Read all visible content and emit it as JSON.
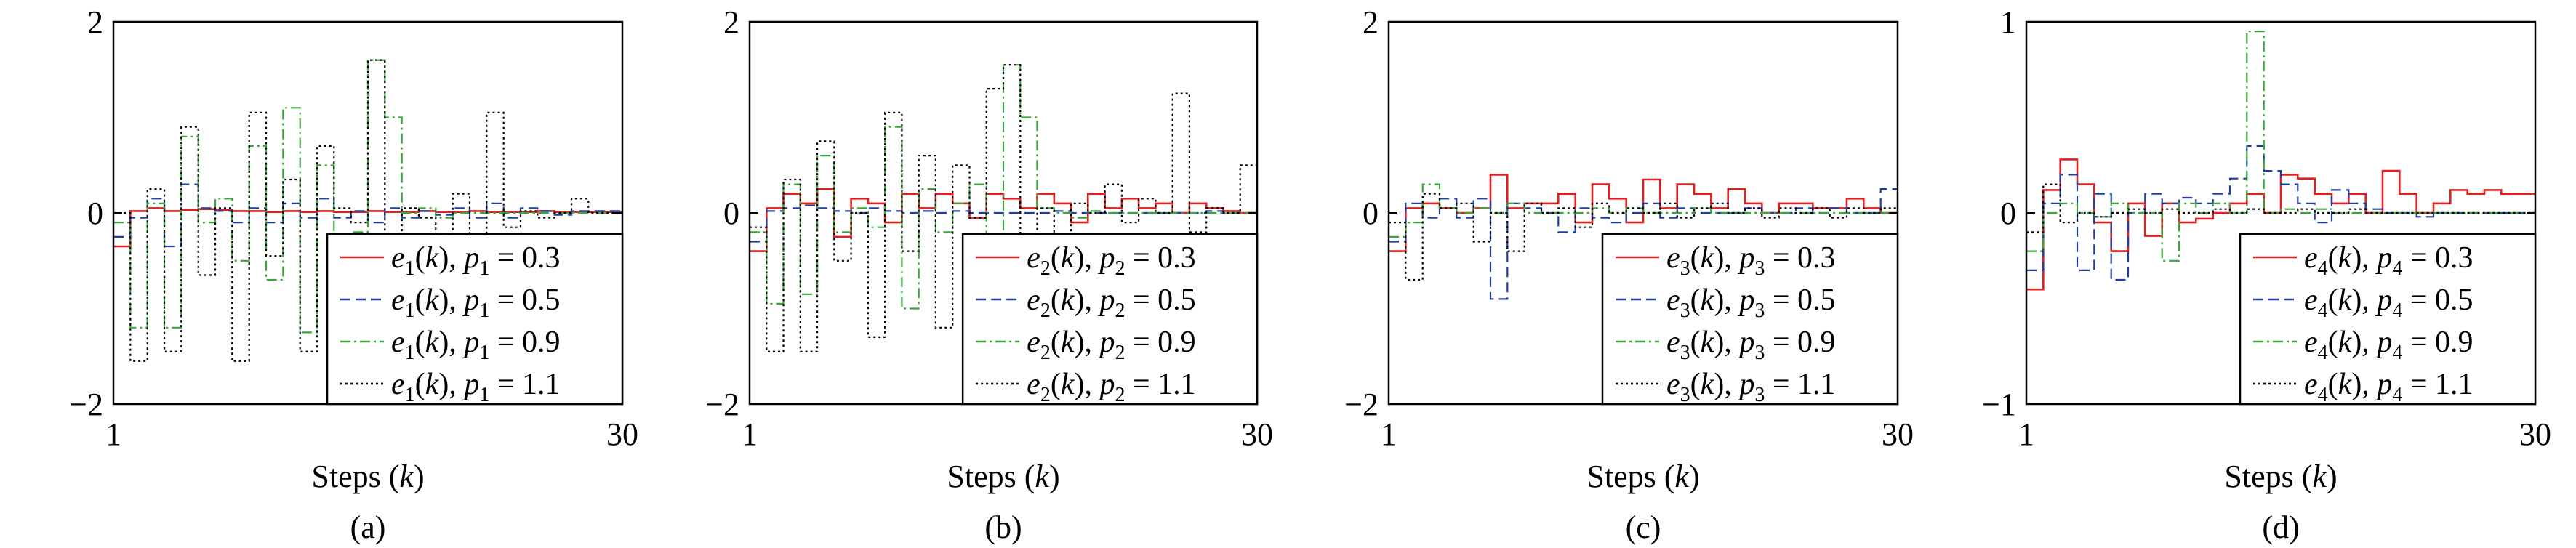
{
  "chart_data": [
    {
      "type": "line",
      "caption": "(a)",
      "xlabel_text": "Steps (",
      "xlabel_var": "k",
      "xlabel_end": ")",
      "xlim": [
        1,
        30
      ],
      "ylim": [
        -2,
        2
      ],
      "x_tick_labels": [
        "1",
        "30"
      ],
      "y_tick_labels": [
        "2",
        "0",
        "−2"
      ],
      "y_tick_values": [
        2,
        0,
        -2
      ],
      "legend_placement": "bottom-right",
      "series": [
        {
          "e": "e",
          "sub": "1",
          "p": "p",
          "psub": "1",
          "pval": "= 0.3",
          "color": "#e02020",
          "dash": "solid",
          "values": [
            -0.35,
            0.02,
            0.05,
            0.02,
            0.03,
            0.04,
            0.03,
            0.02,
            0.02,
            0.01,
            0.02,
            0.01,
            0.02,
            0.01,
            0.01,
            0.02,
            0.01,
            0.01,
            0.02,
            0.01,
            0.01,
            0.02,
            0.01,
            0.01,
            0.01,
            0.02,
            0.01,
            0.01,
            0.01,
            0.01
          ]
        },
        {
          "e": "e",
          "sub": "1",
          "p": "p",
          "psub": "1",
          "pval": "= 0.5",
          "color": "#1f3fa0",
          "dash": "dashed",
          "values": [
            -0.25,
            -0.05,
            0.15,
            -0.35,
            0.3,
            0.05,
            0.02,
            -0.1,
            0.05,
            -0.1,
            0.1,
            -0.05,
            0.15,
            -0.05,
            0.02,
            -0.1,
            0.05,
            -0.05,
            0.02,
            -0.02,
            0.05,
            -0.05,
            0.1,
            -0.05,
            0.05,
            0.02,
            -0.02,
            0.02,
            0.02,
            0.02
          ]
        },
        {
          "e": "e",
          "sub": "1",
          "p": "p",
          "psub": "1",
          "pval": "= 0.9",
          "color": "#3aa63a",
          "dash": "dashdot",
          "values": [
            -0.1,
            -1.2,
            0.1,
            -1.2,
            0.8,
            -0.1,
            0.15,
            -0.5,
            0.7,
            -0.7,
            1.1,
            -1.25,
            0.5,
            -0.35,
            -0.2,
            1.6,
            1.0,
            0.0,
            0.05,
            -0.05,
            0.0,
            0.0,
            0.0,
            0.0,
            0.0,
            0.0,
            0.0,
            0.0,
            0.0,
            0.0
          ]
        },
        {
          "e": "e",
          "sub": "1",
          "p": "p",
          "psub": "1",
          "pval": "= 1.1",
          "color": "#000000",
          "dash": "dotted",
          "values": [
            0.0,
            -1.55,
            0.25,
            -1.45,
            0.9,
            -0.65,
            0.05,
            -1.55,
            1.05,
            -0.45,
            0.35,
            -1.45,
            0.7,
            0.05,
            -0.1,
            1.6,
            -0.7,
            0.05,
            -0.05,
            -0.45,
            0.2,
            -0.6,
            1.05,
            -0.15,
            0.02,
            -0.05,
            0.0,
            0.15,
            0.0,
            0.0
          ]
        }
      ]
    },
    {
      "type": "line",
      "caption": "(b)",
      "xlabel_text": "Steps (",
      "xlabel_var": "k",
      "xlabel_end": ")",
      "xlim": [
        1,
        30
      ],
      "ylim": [
        -2,
        2
      ],
      "x_tick_labels": [
        "1",
        "30"
      ],
      "y_tick_labels": [
        "2",
        "0",
        "−2"
      ],
      "y_tick_values": [
        2,
        0,
        -2
      ],
      "legend_placement": "bottom-right",
      "series": [
        {
          "e": "e",
          "sub": "2",
          "p": "p",
          "psub": "2",
          "pval": "= 0.3",
          "color": "#e02020",
          "dash": "solid",
          "values": [
            -0.4,
            0.05,
            0.2,
            0.1,
            0.25,
            -0.25,
            0.15,
            0.1,
            -0.1,
            0.2,
            0.05,
            0.2,
            0.1,
            -0.05,
            0.2,
            0.15,
            0.05,
            0.2,
            0.1,
            -0.1,
            0.2,
            0.05,
            0.15,
            0.05,
            0.1,
            0.0,
            0.1,
            0.05,
            0.02,
            0.0
          ]
        },
        {
          "e": "e",
          "sub": "2",
          "p": "p",
          "psub": "2",
          "pval": "= 0.5",
          "color": "#1f3fa0",
          "dash": "dashed",
          "values": [
            -0.3,
            0.02,
            0.05,
            0.08,
            0.05,
            0.02,
            0.0,
            0.05,
            0.02,
            0.0,
            0.02,
            0.0,
            0.02,
            0.0,
            0.0,
            0.0,
            0.0,
            0.0,
            0.02,
            0.0,
            0.0,
            0.0,
            0.0,
            0.0,
            0.0,
            0.0,
            0.0,
            0.02,
            0.0,
            0.0
          ]
        },
        {
          "e": "e",
          "sub": "2",
          "p": "p",
          "psub": "2",
          "pval": "= 0.9",
          "color": "#3aa63a",
          "dash": "dashdot",
          "values": [
            -0.2,
            -0.95,
            0.3,
            -0.85,
            0.6,
            -0.2,
            0.05,
            -0.15,
            0.9,
            -1.0,
            0.25,
            -0.2,
            0.1,
            0.3,
            -0.3,
            1.55,
            1.0,
            0.05,
            0.0,
            -0.05,
            0.02,
            0.0,
            0.0,
            0.0,
            0.0,
            0.0,
            0.0,
            0.0,
            0.0,
            0.0
          ]
        },
        {
          "e": "e",
          "sub": "2",
          "p": "p",
          "psub": "2",
          "pval": "= 1.1",
          "color": "#000000",
          "dash": "dotted",
          "values": [
            -0.15,
            -1.45,
            0.35,
            -1.45,
            0.75,
            -0.5,
            0.0,
            -1.3,
            1.05,
            -0.4,
            0.6,
            -1.2,
            0.5,
            -0.05,
            1.3,
            1.55,
            -0.5,
            0.05,
            -0.55,
            0.1,
            0.0,
            0.3,
            -0.1,
            0.15,
            0.0,
            1.25,
            -0.2,
            0.05,
            0.0,
            0.5
          ]
        }
      ]
    },
    {
      "type": "line",
      "caption": "(c)",
      "xlabel_text": "Steps (",
      "xlabel_var": "k",
      "xlabel_end": ")",
      "xlim": [
        1,
        30
      ],
      "ylim": [
        -2,
        2
      ],
      "x_tick_labels": [
        "1",
        "30"
      ],
      "y_tick_labels": [
        "2",
        "0",
        "−2"
      ],
      "y_tick_values": [
        2,
        0,
        -2
      ],
      "legend_placement": "bottom-right",
      "series": [
        {
          "e": "e",
          "sub": "3",
          "p": "p",
          "psub": "3",
          "pval": "= 0.3",
          "color": "#e02020",
          "dash": "solid",
          "values": [
            -0.4,
            0.05,
            0.1,
            0.05,
            0.0,
            0.05,
            0.4,
            0.05,
            0.1,
            0.1,
            0.2,
            -0.1,
            0.3,
            0.15,
            -0.1,
            0.35,
            0.05,
            0.3,
            0.2,
            0.05,
            0.25,
            0.1,
            0.0,
            0.1,
            0.1,
            0.05,
            0.05,
            0.15,
            0.05,
            0.0
          ]
        },
        {
          "e": "e",
          "sub": "3",
          "p": "p",
          "psub": "3",
          "pval": "= 0.5",
          "color": "#1f3fa0",
          "dash": "dashed",
          "values": [
            -0.3,
            0.1,
            -0.05,
            0.15,
            -0.05,
            0.15,
            -0.9,
            0.1,
            0.05,
            0.0,
            -0.2,
            0.05,
            -0.05,
            -0.1,
            0.0,
            0.1,
            -0.05,
            0.05,
            0.0,
            0.0,
            0.0,
            0.05,
            0.0,
            0.0,
            0.05,
            0.0,
            0.05,
            0.0,
            0.0,
            0.25
          ]
        },
        {
          "e": "e",
          "sub": "3",
          "p": "p",
          "psub": "3",
          "pval": "= 0.9",
          "color": "#3aa63a",
          "dash": "dashdot",
          "values": [
            -0.25,
            -0.1,
            0.3,
            0.05,
            0.0,
            0.05,
            0.0,
            0.1,
            0.0,
            0.0,
            0.0,
            0.0,
            0.05,
            0.0,
            0.05,
            0.0,
            0.0,
            0.0,
            0.05,
            0.0,
            0.0,
            0.0,
            0.0,
            0.0,
            0.0,
            0.0,
            0.0,
            0.0,
            0.0,
            0.0
          ]
        },
        {
          "e": "e",
          "sub": "3",
          "p": "p",
          "psub": "3",
          "pval": "= 1.1",
          "color": "#000000",
          "dash": "dotted",
          "values": [
            -0.1,
            -0.7,
            0.2,
            0.05,
            0.1,
            -0.3,
            0.0,
            -0.4,
            0.1,
            0.0,
            0.05,
            -0.15,
            0.1,
            0.0,
            0.05,
            0.0,
            0.1,
            -0.05,
            0.05,
            0.1,
            0.0,
            0.05,
            -0.05,
            0.05,
            0.0,
            0.05,
            -0.05,
            0.05,
            0.0,
            0.05
          ]
        }
      ]
    },
    {
      "type": "line",
      "caption": "(d)",
      "xlabel_text": "Steps (",
      "xlabel_var": "k",
      "xlabel_end": ")",
      "xlim": [
        1,
        30
      ],
      "ylim": [
        -1,
        1
      ],
      "x_tick_labels": [
        "1",
        "30"
      ],
      "y_tick_labels": [
        "1",
        "0",
        "−1"
      ],
      "y_tick_values": [
        1,
        0,
        -1
      ],
      "legend_placement": "bottom-right",
      "series": [
        {
          "e": "e",
          "sub": "4",
          "p": "p",
          "psub": "4",
          "pval": "= 0.3",
          "color": "#e02020",
          "dash": "solid",
          "values": [
            -0.4,
            0.12,
            0.28,
            0.15,
            -0.05,
            -0.2,
            0.05,
            -0.12,
            0.05,
            -0.05,
            -0.03,
            0.0,
            0.05,
            0.1,
            0.0,
            0.2,
            0.18,
            0.1,
            0.05,
            0.1,
            0.0,
            0.22,
            0.1,
            0.0,
            0.05,
            0.12,
            0.1,
            0.12,
            0.1,
            0.1
          ]
        },
        {
          "e": "e",
          "sub": "4",
          "p": "p",
          "psub": "4",
          "pval": "= 0.5",
          "color": "#1f3fa0",
          "dash": "dashed",
          "values": [
            -0.3,
            0.05,
            0.2,
            -0.3,
            0.1,
            -0.35,
            0.0,
            0.1,
            0.05,
            0.08,
            0.05,
            0.1,
            0.18,
            0.35,
            0.22,
            0.15,
            0.05,
            -0.05,
            0.12,
            0.05,
            0.02,
            0.0,
            0.0,
            -0.02,
            0.0,
            0.0,
            0.0,
            0.0,
            0.0,
            0.0
          ]
        },
        {
          "e": "e",
          "sub": "4",
          "p": "p",
          "psub": "4",
          "pval": "= 0.9",
          "color": "#3aa63a",
          "dash": "dashdot",
          "values": [
            -0.2,
            0.0,
            0.05,
            0.0,
            -0.02,
            0.05,
            0.0,
            0.0,
            -0.25,
            0.05,
            0.0,
            0.05,
            0.0,
            0.95,
            0.0,
            0.02,
            0.0,
            0.02,
            0.0,
            0.0,
            0.0,
            0.0,
            0.0,
            0.0,
            0.0,
            0.0,
            0.0,
            0.0,
            0.0,
            0.0
          ]
        },
        {
          "e": "e",
          "sub": "4",
          "p": "p",
          "psub": "4",
          "pval": "= 1.1",
          "color": "#000000",
          "dash": "dotted",
          "values": [
            -0.1,
            0.15,
            -0.05,
            0.0,
            -0.02,
            0.0,
            0.02,
            0.0,
            0.02,
            0.0,
            0.0,
            0.02,
            0.0,
            0.02,
            0.0,
            0.0,
            0.02,
            0.0,
            0.0,
            0.02,
            0.0,
            0.0,
            0.0,
            0.0,
            0.0,
            0.0,
            0.0,
            0.0,
            0.0,
            0.0
          ]
        }
      ]
    }
  ]
}
